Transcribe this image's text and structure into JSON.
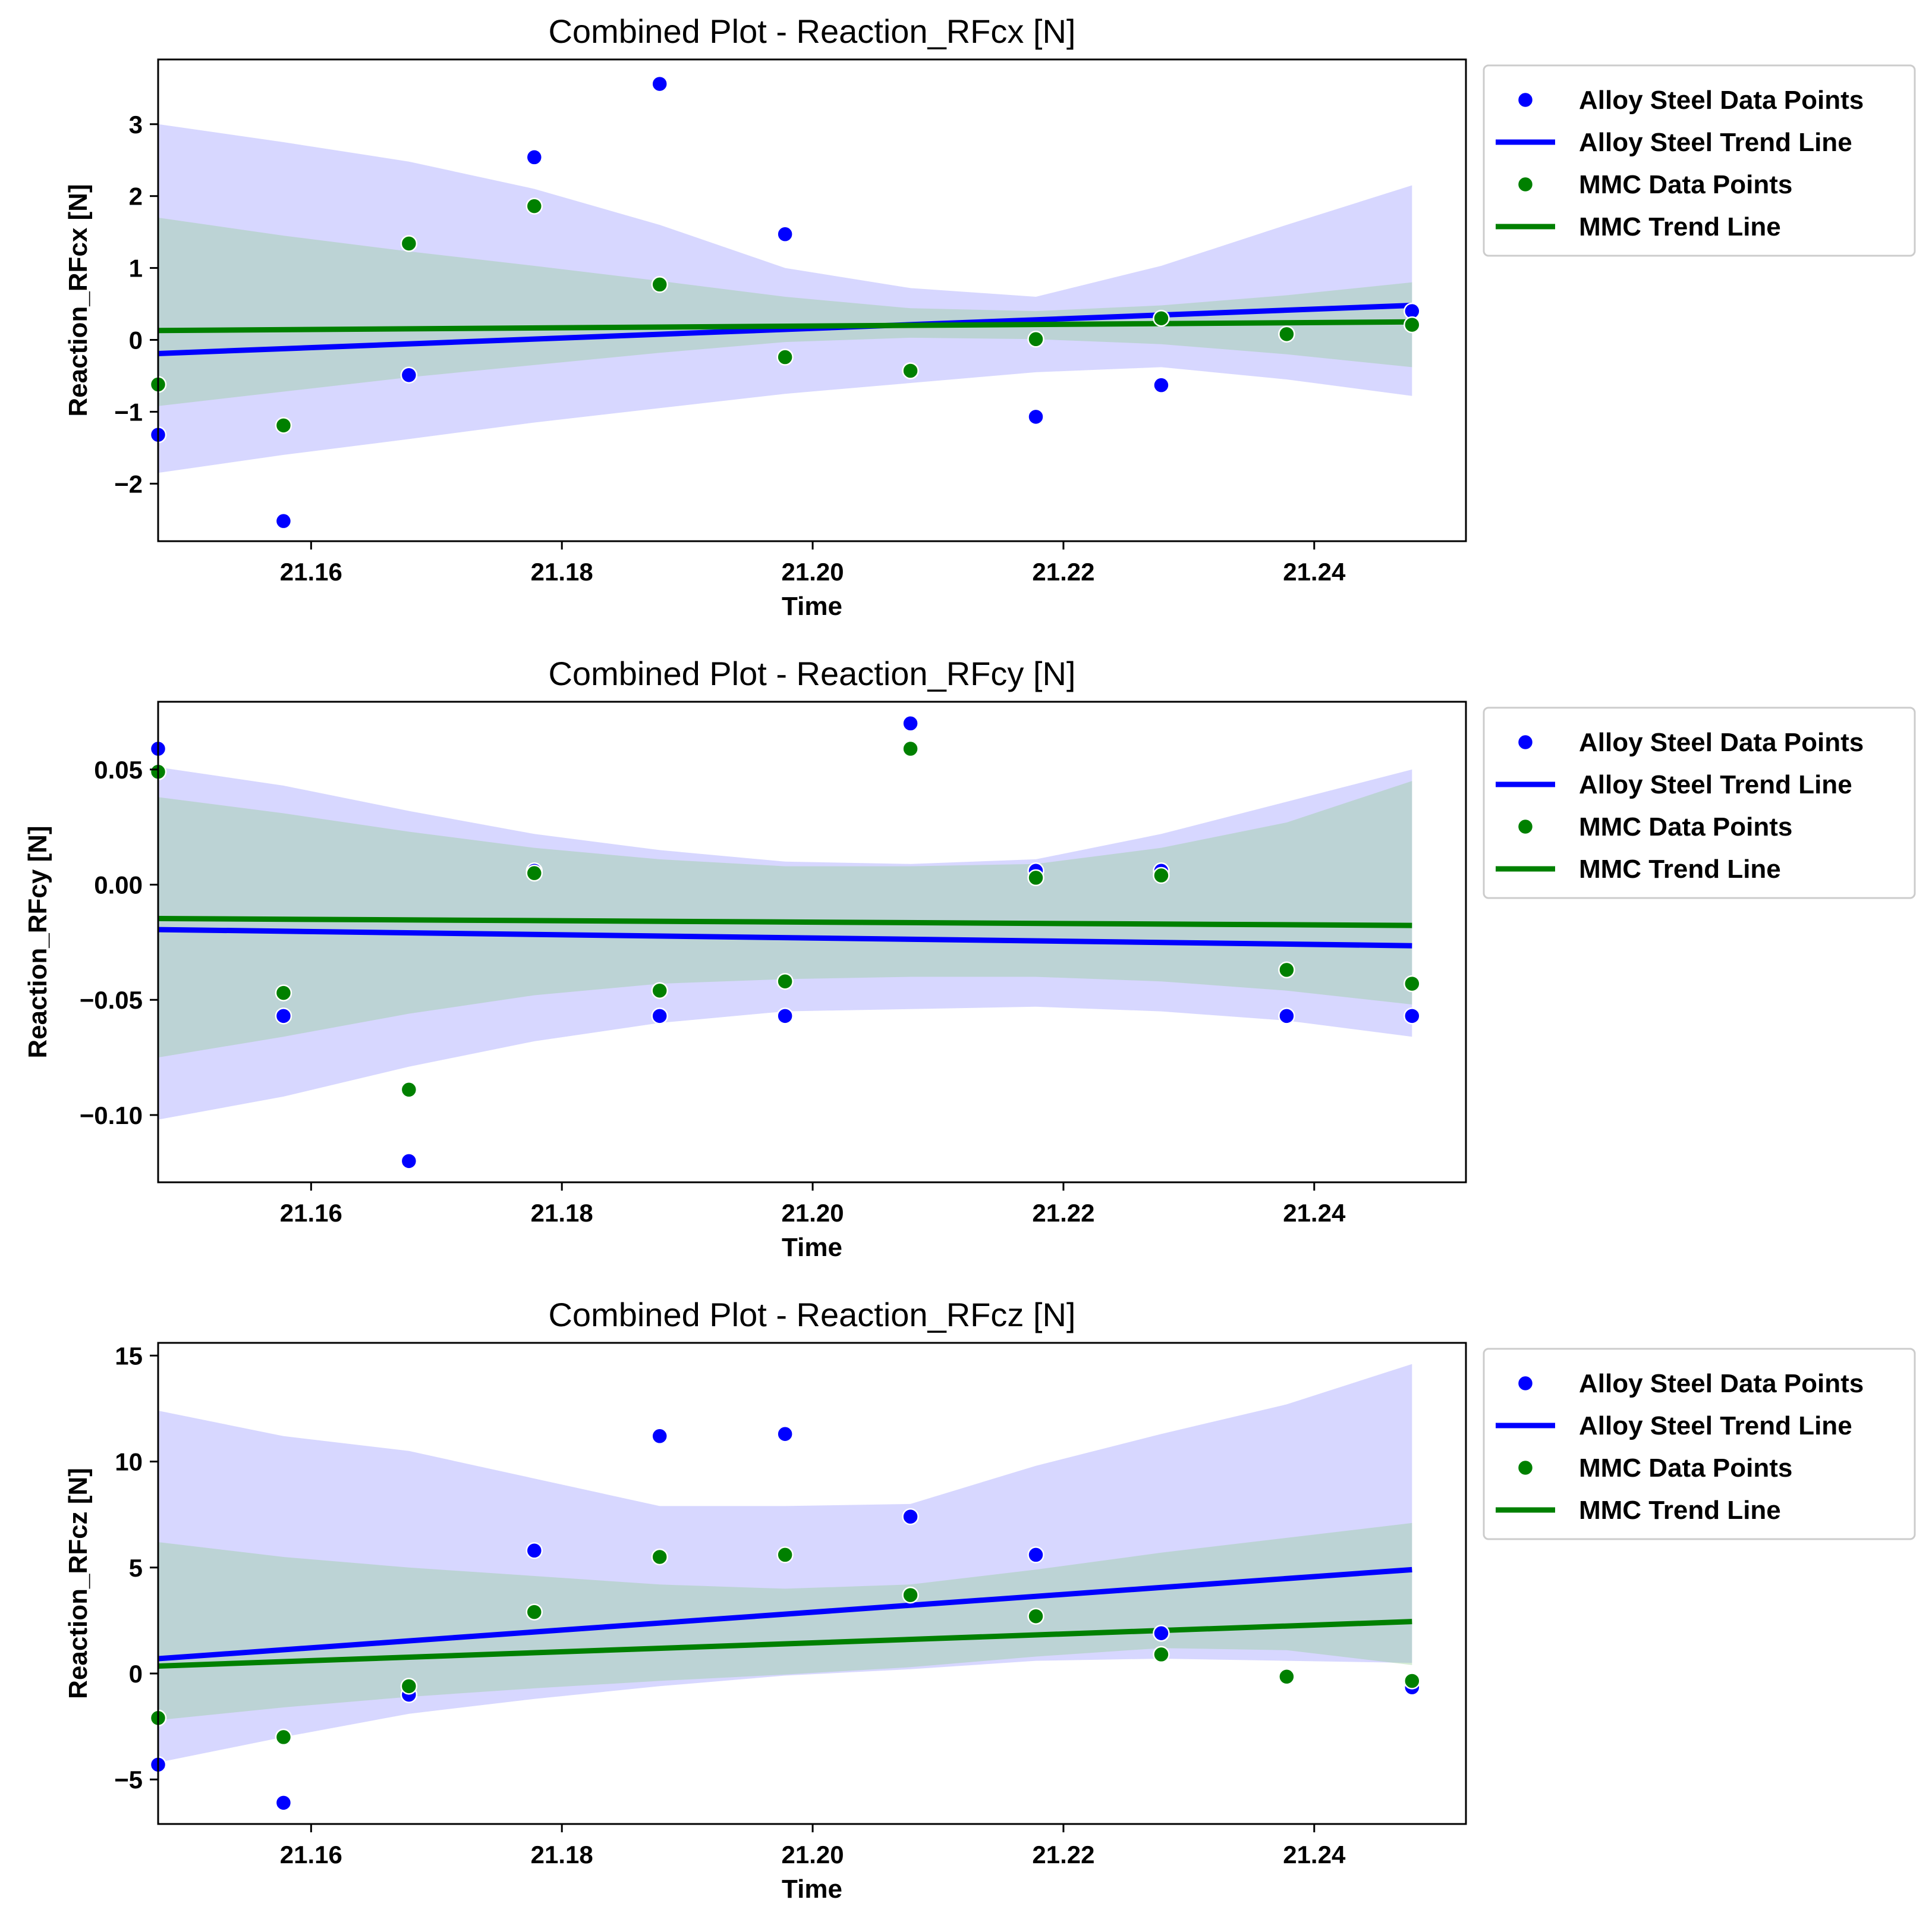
{
  "colors": {
    "alloy": "#0000ff",
    "mmc": "#008000",
    "alloy_band": "#8c8cff",
    "mmc_band": "#90cc90"
  },
  "chart_data": [
    {
      "type": "scatter",
      "title": "Combined Plot - Reaction_RFcx [N]",
      "xlabel": "Time",
      "ylabel": "Reaction_RFcx [N]",
      "xlim": [
        21.1478,
        21.2521
      ],
      "ylim": [
        -2.8,
        3.9
      ],
      "xticks": [
        21.16,
        21.18,
        21.2,
        21.22,
        21.24
      ],
      "xtick_labels": [
        "21.16",
        "21.18",
        "21.20",
        "21.22",
        "21.24"
      ],
      "yticks": [
        -2,
        -1,
        0,
        1,
        2,
        3
      ],
      "ytick_labels": [
        "−2",
        "−1",
        "0",
        "1",
        "2",
        "3"
      ],
      "legend": [
        "Alloy Steel Data Points",
        "Alloy Steel Trend Line",
        "MMC Data Points",
        "MMC Trend Line"
      ],
      "series": [
        {
          "name": "Alloy Steel Data Points",
          "x": [
            21.1478,
            21.1578,
            21.1678,
            21.1778,
            21.1878,
            21.1978,
            21.2078,
            21.2178,
            21.2278,
            21.2378,
            21.2478
          ],
          "y": [
            -1.32,
            -2.52,
            -0.49,
            2.54,
            3.56,
            1.47,
            -0.43,
            -1.07,
            -0.63,
            0.08,
            0.4
          ]
        },
        {
          "name": "MMC Data Points",
          "x": [
            21.1478,
            21.1578,
            21.1678,
            21.1778,
            21.1878,
            21.1978,
            21.2078,
            21.2178,
            21.2278,
            21.2378,
            21.2478
          ],
          "y": [
            -0.62,
            -1.19,
            1.34,
            1.86,
            0.77,
            -0.24,
            -0.43,
            0.01,
            0.3,
            0.08,
            0.21
          ]
        }
      ],
      "trend_lines": [
        {
          "name": "Alloy Steel Trend Line",
          "x": [
            21.1478,
            21.2478
          ],
          "y": [
            -0.19,
            0.48
          ]
        },
        {
          "name": "MMC Trend Line",
          "x": [
            21.1478,
            21.2478
          ],
          "y": [
            0.13,
            0.25
          ]
        }
      ],
      "bands": [
        {
          "name": "Alloy Steel",
          "x": [
            21.1478,
            21.1578,
            21.1678,
            21.1778,
            21.1878,
            21.1978,
            21.2078,
            21.2178,
            21.2278,
            21.2378,
            21.2478
          ],
          "lower": [
            -1.85,
            -1.6,
            -1.38,
            -1.15,
            -0.95,
            -0.75,
            -0.6,
            -0.45,
            -0.38,
            -0.55,
            -0.78
          ],
          "upper": [
            3.0,
            2.75,
            2.48,
            2.1,
            1.6,
            1.0,
            0.72,
            0.6,
            1.03,
            1.6,
            2.15
          ]
        },
        {
          "name": "MMC",
          "x": [
            21.1478,
            21.1578,
            21.1678,
            21.1778,
            21.1878,
            21.1978,
            21.2078,
            21.2178,
            21.2278,
            21.2378,
            21.2478
          ],
          "lower": [
            -0.92,
            -0.72,
            -0.52,
            -0.35,
            -0.18,
            -0.03,
            0.03,
            0.01,
            -0.06,
            -0.2,
            -0.38
          ],
          "upper": [
            1.7,
            1.45,
            1.23,
            1.03,
            0.82,
            0.6,
            0.44,
            0.4,
            0.48,
            0.62,
            0.8
          ]
        }
      ]
    },
    {
      "type": "scatter",
      "title": "Combined Plot - Reaction_RFcy [N]",
      "xlabel": "Time",
      "ylabel": "Reaction_RFcy [N]",
      "xlim": [
        21.1478,
        21.2521
      ],
      "ylim": [
        -0.1292,
        0.0794
      ],
      "xticks": [
        21.16,
        21.18,
        21.2,
        21.22,
        21.24
      ],
      "xtick_labels": [
        "21.16",
        "21.18",
        "21.20",
        "21.22",
        "21.24"
      ],
      "yticks": [
        -0.1,
        -0.05,
        0.0,
        0.05
      ],
      "ytick_labels": [
        "−0.10",
        "−0.05",
        "0.00",
        "0.05"
      ],
      "legend": [
        "Alloy Steel Data Points",
        "Alloy Steel Trend Line",
        "MMC Data Points",
        "MMC Trend Line"
      ],
      "series": [
        {
          "name": "Alloy Steel Data Points",
          "x": [
            21.1478,
            21.1578,
            21.1678,
            21.1778,
            21.1878,
            21.1978,
            21.2078,
            21.2178,
            21.2278,
            21.2378,
            21.2478
          ],
          "y": [
            0.059,
            -0.057,
            -0.12,
            0.006,
            -0.057,
            -0.057,
            0.07,
            0.006,
            0.006,
            -0.057,
            -0.057
          ]
        },
        {
          "name": "MMC Data Points",
          "x": [
            21.1478,
            21.1578,
            21.1678,
            21.1778,
            21.1878,
            21.1978,
            21.2078,
            21.2178,
            21.2278,
            21.2378,
            21.2478
          ],
          "y": [
            0.049,
            -0.047,
            -0.089,
            0.005,
            -0.046,
            -0.042,
            0.059,
            0.003,
            0.004,
            -0.037,
            -0.043
          ]
        }
      ],
      "trend_lines": [
        {
          "name": "Alloy Steel Trend Line",
          "x": [
            21.1478,
            21.2478
          ],
          "y": [
            -0.0195,
            -0.0265
          ]
        },
        {
          "name": "MMC Trend Line",
          "x": [
            21.1478,
            21.2478
          ],
          "y": [
            -0.0147,
            -0.0177
          ]
        }
      ],
      "bands": [
        {
          "name": "Alloy Steel",
          "x": [
            21.1478,
            21.1578,
            21.1678,
            21.1778,
            21.1878,
            21.1978,
            21.2078,
            21.2178,
            21.2278,
            21.2378,
            21.2478
          ],
          "lower": [
            -0.102,
            -0.092,
            -0.079,
            -0.068,
            -0.06,
            -0.055,
            -0.054,
            -0.053,
            -0.055,
            -0.059,
            -0.066
          ],
          "upper": [
            0.051,
            0.043,
            0.032,
            0.022,
            0.015,
            0.01,
            0.009,
            0.011,
            0.022,
            0.036,
            0.05
          ]
        },
        {
          "name": "MMC",
          "x": [
            21.1478,
            21.1578,
            21.1678,
            21.1778,
            21.1878,
            21.1978,
            21.2078,
            21.2178,
            21.2278,
            21.2378,
            21.2478
          ],
          "lower": [
            -0.075,
            -0.066,
            -0.056,
            -0.048,
            -0.043,
            -0.041,
            -0.04,
            -0.04,
            -0.042,
            -0.046,
            -0.052
          ],
          "upper": [
            0.038,
            0.031,
            0.023,
            0.016,
            0.011,
            0.008,
            0.008,
            0.009,
            0.016,
            0.027,
            0.045
          ]
        }
      ]
    },
    {
      "type": "scatter",
      "title": "Combined Plot - Reaction_RFcz [N]",
      "xlabel": "Time",
      "ylabel": "Reaction_RFcz [N]",
      "xlim": [
        21.1478,
        21.2521
      ],
      "ylim": [
        -7.1,
        15.6
      ],
      "xticks": [
        21.16,
        21.18,
        21.2,
        21.22,
        21.24
      ],
      "xtick_labels": [
        "21.16",
        "21.18",
        "21.20",
        "21.22",
        "21.24"
      ],
      "yticks": [
        -5,
        0,
        5,
        10,
        15
      ],
      "ytick_labels": [
        "−5",
        "0",
        "5",
        "10",
        "15"
      ],
      "legend": [
        "Alloy Steel Data Points",
        "Alloy Steel Trend Line",
        "MMC Data Points",
        "MMC Trend Line"
      ],
      "series": [
        {
          "name": "Alloy Steel Data Points",
          "x": [
            21.1478,
            21.1578,
            21.1678,
            21.1778,
            21.1878,
            21.1978,
            21.2078,
            21.2178,
            21.2278,
            21.2378,
            21.2478
          ],
          "y": [
            -4.3,
            -6.1,
            -1.0,
            5.8,
            11.2,
            11.3,
            7.4,
            5.6,
            1.9,
            -0.2,
            -0.65
          ]
        },
        {
          "name": "MMC Data Points",
          "x": [
            21.1478,
            21.1578,
            21.1678,
            21.1778,
            21.1878,
            21.1978,
            21.2078,
            21.2178,
            21.2278,
            21.2378,
            21.2478
          ],
          "y": [
            -2.1,
            -3.0,
            -0.6,
            2.9,
            5.5,
            5.6,
            3.7,
            2.7,
            0.9,
            -0.15,
            -0.35
          ]
        }
      ],
      "trend_lines": [
        {
          "name": "Alloy Steel Trend Line",
          "x": [
            21.1478,
            21.2478
          ],
          "y": [
            0.7,
            4.9
          ]
        },
        {
          "name": "MMC Trend Line",
          "x": [
            21.1478,
            21.2478
          ],
          "y": [
            0.35,
            2.45
          ]
        }
      ],
      "bands": [
        {
          "name": "Alloy Steel",
          "x": [
            21.1478,
            21.1578,
            21.1678,
            21.1778,
            21.1878,
            21.1978,
            21.2078,
            21.2178,
            21.2278,
            21.2378,
            21.2478
          ],
          "lower": [
            -4.2,
            -3.0,
            -1.9,
            -1.2,
            -0.6,
            -0.1,
            0.2,
            0.6,
            0.7,
            0.6,
            0.5
          ],
          "upper": [
            12.4,
            11.2,
            10.5,
            9.2,
            7.9,
            7.9,
            8.0,
            9.8,
            11.3,
            12.7,
            14.6
          ]
        },
        {
          "name": "MMC",
          "x": [
            21.1478,
            21.1578,
            21.1678,
            21.1778,
            21.1878,
            21.1978,
            21.2078,
            21.2178,
            21.2278,
            21.2378,
            21.2478
          ],
          "lower": [
            -2.2,
            -1.6,
            -1.1,
            -0.7,
            -0.35,
            -0.05,
            0.3,
            0.8,
            1.2,
            1.1,
            0.4
          ],
          "upper": [
            6.2,
            5.5,
            5.0,
            4.6,
            4.2,
            4.0,
            4.2,
            4.9,
            5.7,
            6.4,
            7.1
          ]
        }
      ]
    }
  ]
}
